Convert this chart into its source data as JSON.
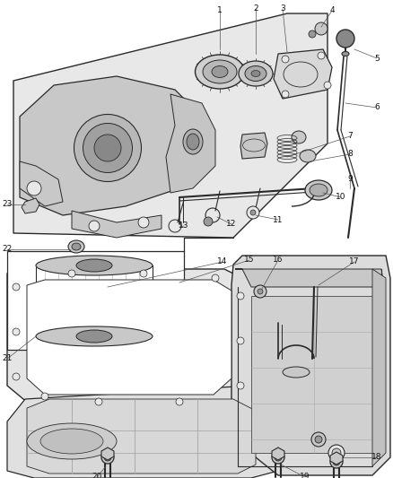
{
  "bg_color": "#ffffff",
  "line_color": "#2a2a2a",
  "gray_light": "#e8e8e8",
  "gray_mid": "#c8c8c8",
  "gray_dark": "#999999",
  "figsize": [
    4.38,
    5.33
  ],
  "dpi": 100,
  "label_fs": 6.5
}
